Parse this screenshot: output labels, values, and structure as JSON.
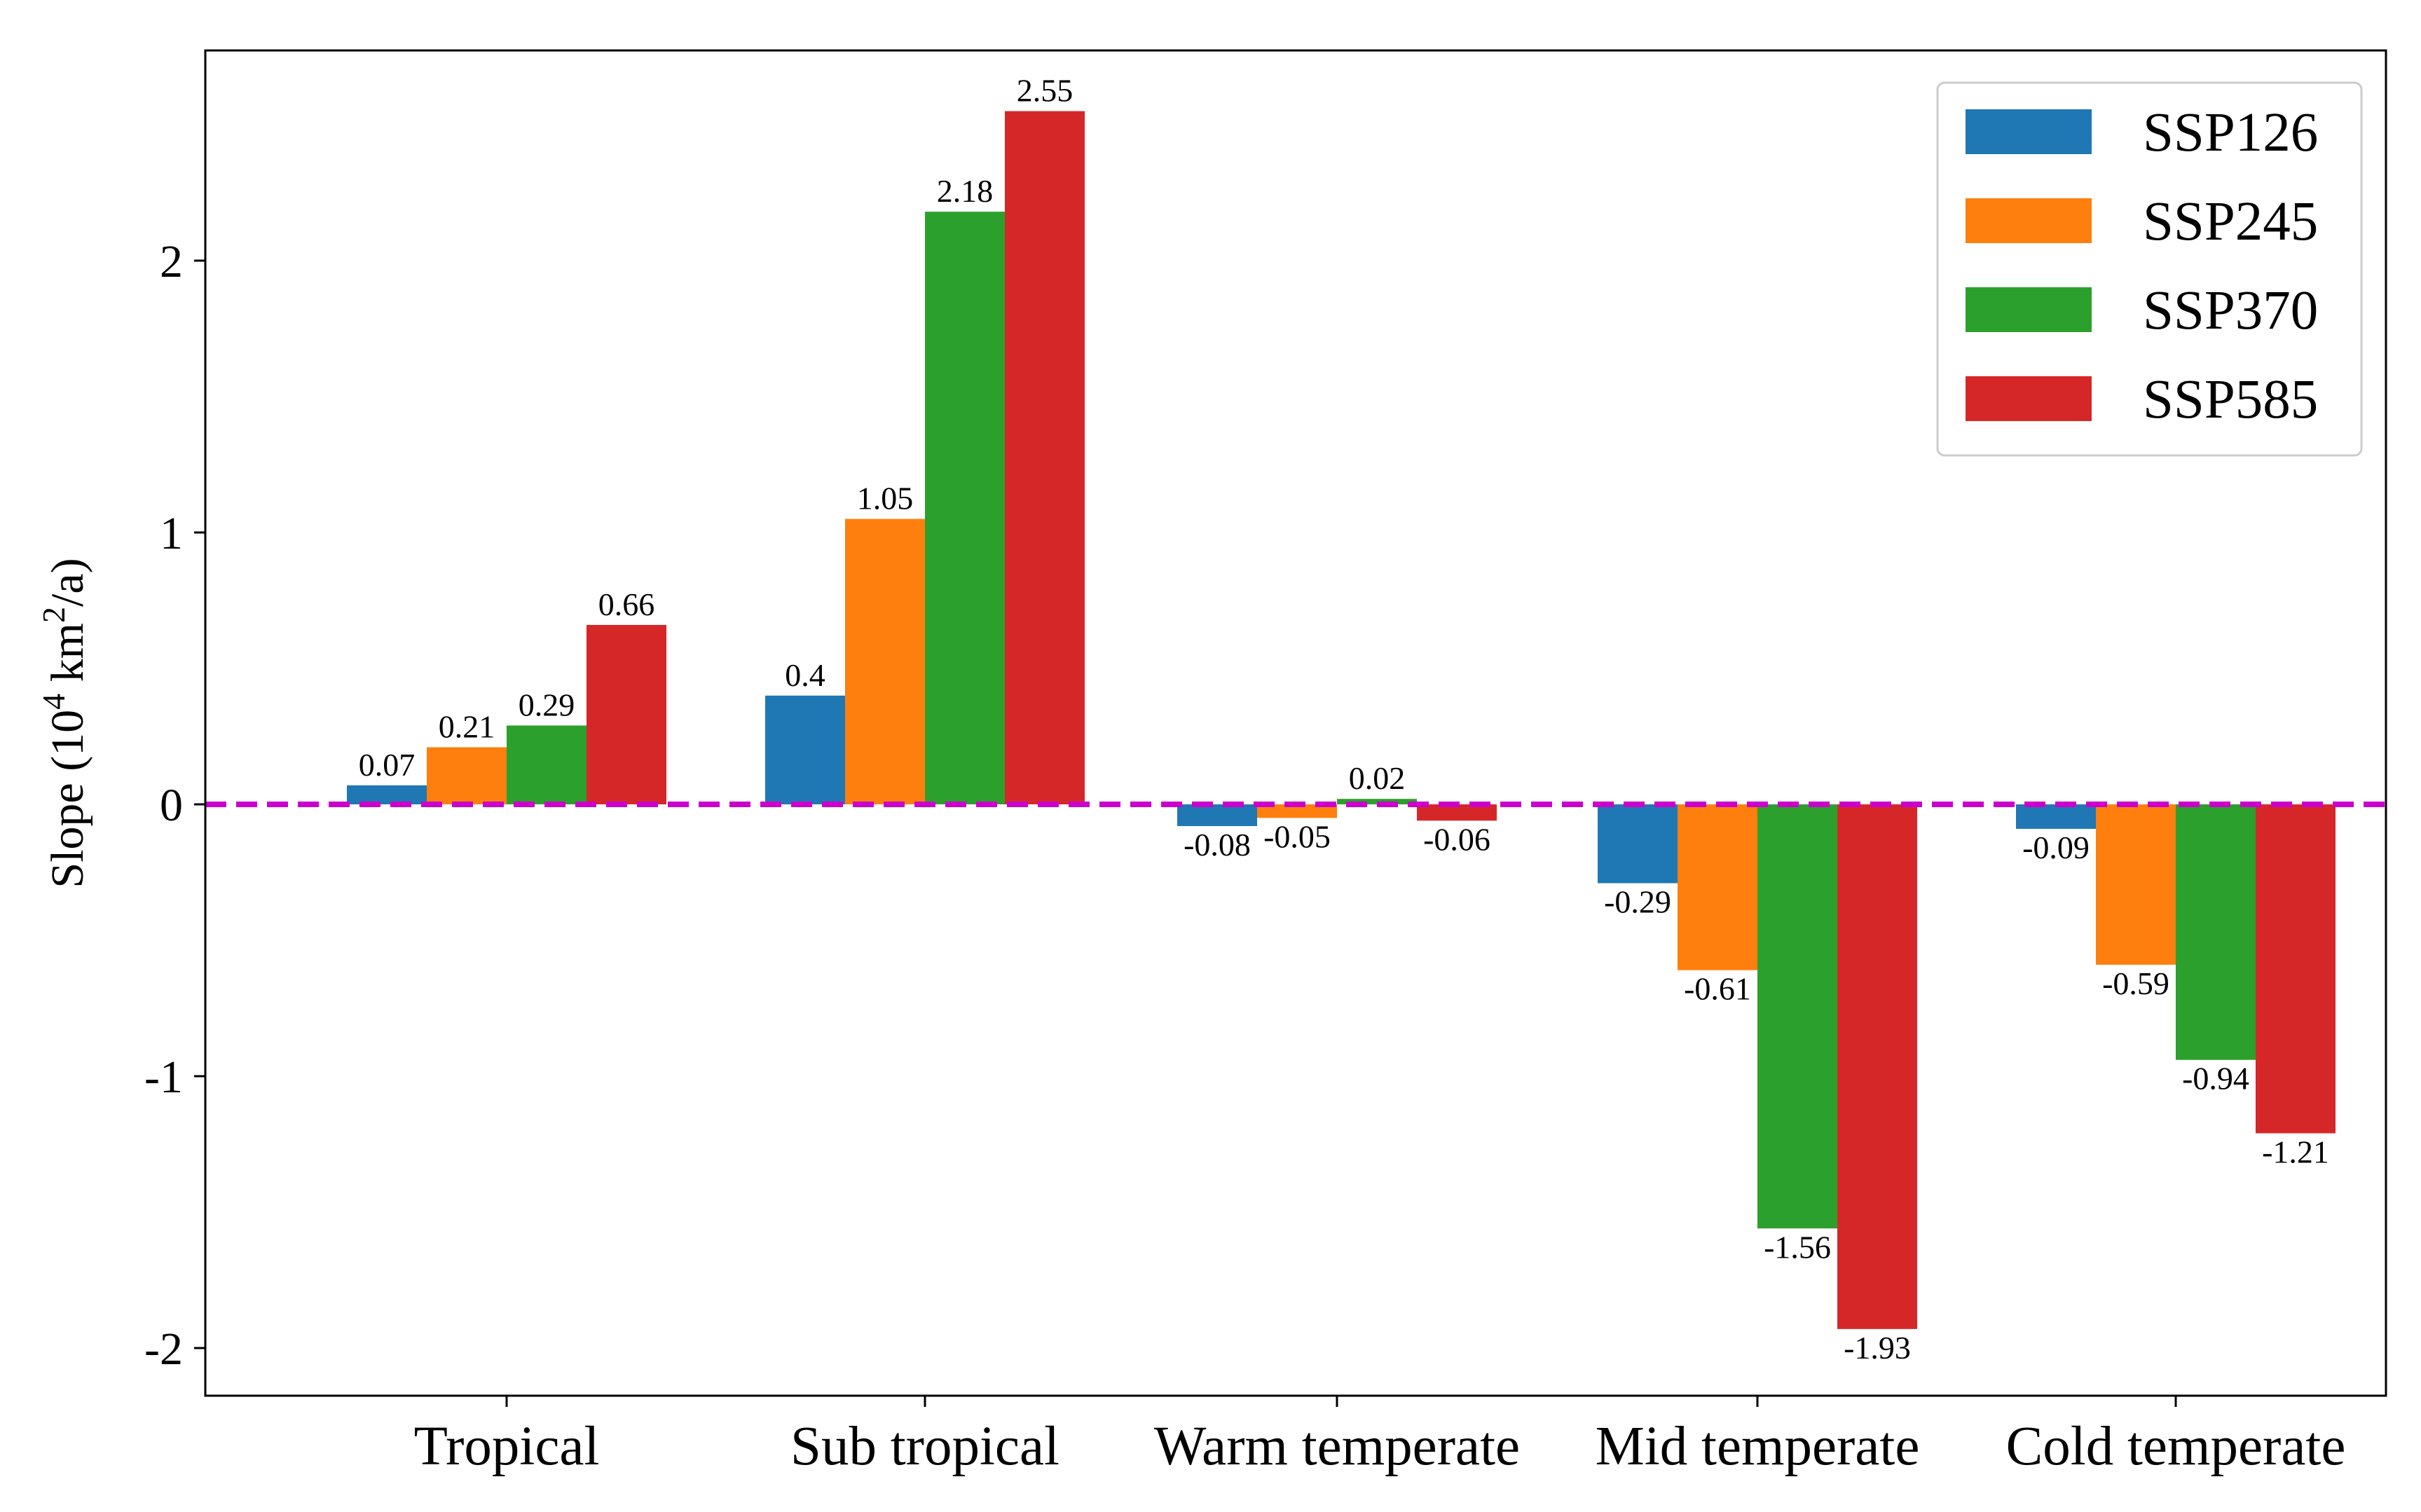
{
  "chart_data": {
    "type": "bar",
    "title": "",
    "xlabel": "",
    "ylabel": {
      "prefix": "Slope (10",
      "sup1": "4",
      "middle": " km",
      "sup2": "2",
      "suffix": "/a)"
    },
    "ylim": [
      -2.15,
      2.78
    ],
    "yticks": [
      2,
      1,
      0,
      -1,
      -2
    ],
    "ytick_labels": [
      "2",
      "1",
      "0",
      "-1",
      "-2"
    ],
    "categories": [
      "Tropical",
      "Sub tropical",
      "Warm temperate",
      "Mid temperate",
      "Cold temperate"
    ],
    "series": [
      {
        "name": "SSP126",
        "color": "#1f77b4",
        "values": [
          0.07,
          0.4,
          -0.08,
          -0.29,
          -0.09
        ]
      },
      {
        "name": "SSP245",
        "color": "#ff7f0e",
        "values": [
          0.21,
          1.05,
          -0.05,
          -0.61,
          -0.59
        ]
      },
      {
        "name": "SSP370",
        "color": "#2ca02c",
        "values": [
          0.29,
          2.18,
          0.02,
          -1.56,
          -0.94
        ]
      },
      {
        "name": "SSP585",
        "color": "#d62728",
        "values": [
          0.66,
          2.55,
          -0.06,
          -1.93,
          -1.21
        ]
      }
    ],
    "data_labels": [
      [
        "0.07",
        "0.4",
        "-0.08",
        "-0.29",
        "-0.09"
      ],
      [
        "0.21",
        "1.05",
        "-0.05",
        "-0.61",
        "-0.59"
      ],
      [
        "0.29",
        "2.18",
        "0.02",
        "-1.56",
        "-0.94"
      ],
      [
        "0.66",
        "2.55",
        "-0.06",
        "-1.93",
        "-1.21"
      ]
    ],
    "reference_line": {
      "y": 0,
      "color": "#cc00cc",
      "style": "dashed"
    },
    "legend": {
      "position": "top-right"
    },
    "grid": false
  }
}
